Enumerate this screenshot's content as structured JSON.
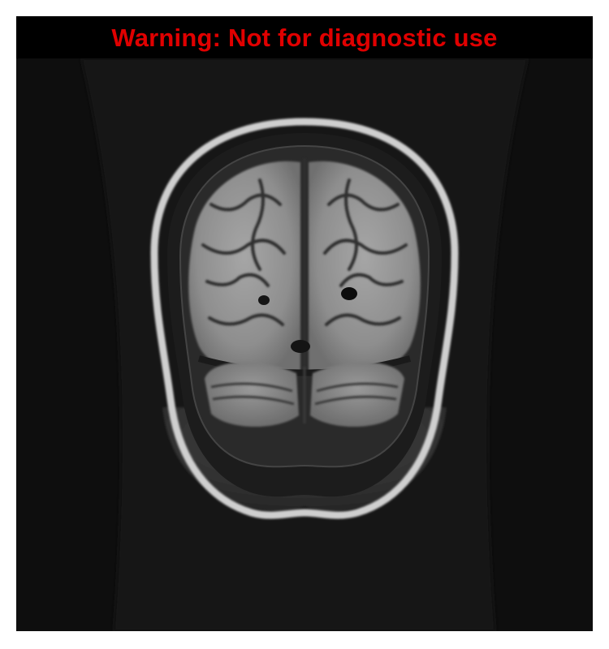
{
  "banner": {
    "text": "Warning: Not for diagnostic use",
    "color": "#e00000"
  },
  "scan": {
    "modality": "MRI",
    "view": "coronal brain slice"
  }
}
